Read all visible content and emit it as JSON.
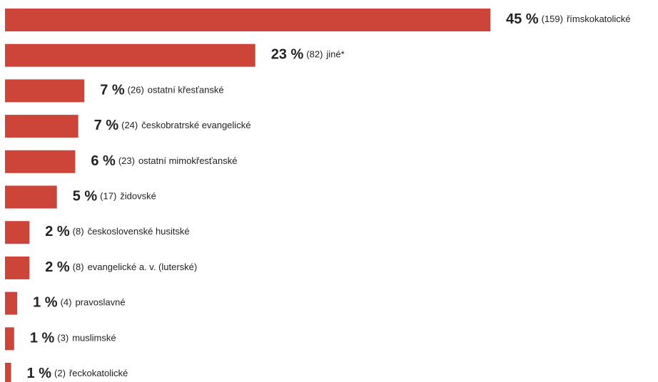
{
  "chart_data": {
    "type": "bar",
    "orientation": "horizontal",
    "color": "#cc4538",
    "categories": [
      "římskokatolické",
      "jiné*",
      "ostatní křesťanské",
      "českobratrské evangelické",
      "ostatní mimokřesťanské",
      "židovské",
      "československé husitské",
      "evangelické a. v. (luterské)",
      "pravoslavné",
      "muslimské",
      "řeckokatolické"
    ],
    "values": [
      159,
      82,
      26,
      24,
      23,
      17,
      8,
      8,
      4,
      3,
      2
    ],
    "value_labels": [
      "(159)",
      "(82)",
      "(26)",
      "(24)",
      "(23)",
      "(17)",
      "(8)",
      "(8)",
      "(4)",
      "(3)",
      "(2)"
    ],
    "percent_values": [
      45,
      23,
      7,
      7,
      6,
      5,
      2,
      2,
      1,
      1,
      1
    ],
    "percent_labels": [
      "45 %",
      "23 %",
      "7 %",
      "7 %",
      "6 %",
      "5 %",
      "2 %",
      "2 %",
      "1 %",
      "1 %",
      "1 %"
    ]
  }
}
